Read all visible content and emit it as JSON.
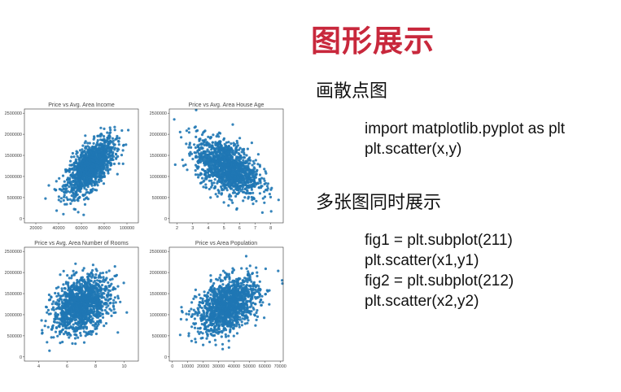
{
  "slide": {
    "title": "图形展示",
    "section1_heading": "画散点图",
    "section1_code": [
      "import matplotlib.pyplot as plt",
      "plt.scatter(x,y)"
    ],
    "section2_heading": "多张图同时展示",
    "section2_code": [
      "fig1 = plt.subplot(211)",
      "plt.scatter(x1,y1)",
      "fig2 = plt.subplot(212)",
      "plt.scatter(x2,y2)"
    ],
    "title_color": "#c8283c"
  },
  "chart_data": [
    {
      "type": "scatter",
      "title": "Price vs Avg. Area Income",
      "color": "#1f77b4",
      "xlim": [
        10000,
        110000
      ],
      "ylim": [
        -100000,
        2600000
      ],
      "xticks": [
        "20000",
        "40000",
        "60000",
        "80000",
        "100000"
      ],
      "xtick_values": [
        20000,
        40000,
        60000,
        80000,
        100000
      ],
      "yticks": [
        "0",
        "500000",
        "1000000",
        "1500000",
        "2000000",
        "2500000"
      ],
      "ytick_values": [
        0,
        500000,
        1000000,
        1500000,
        2000000,
        2500000
      ],
      "cloud": {
        "cx": 68000,
        "cy": 1230000,
        "sx": 10500,
        "sy": 330000,
        "rho": 0.64,
        "n": 1400
      }
    },
    {
      "type": "scatter",
      "title": "Price vs Avg. Area House Age",
      "color": "#1f77b4",
      "xlim": [
        1.5,
        8.8
      ],
      "ylim": [
        -100000,
        2600000
      ],
      "xticks": [
        "2",
        "3",
        "4",
        "5",
        "6",
        "7",
        "8"
      ],
      "xtick_values": [
        2,
        3,
        4,
        5,
        6,
        7,
        8
      ],
      "yticks": [
        "0",
        "500000",
        "1000000",
        "1500000",
        "2000000",
        "2500000"
      ],
      "ytick_values": [
        0,
        500000,
        1000000,
        1500000,
        2000000,
        2500000
      ],
      "cloud": {
        "cx": 5.2,
        "cy": 1230000,
        "sx": 1.0,
        "sy": 330000,
        "rho": -0.45,
        "n": 1400
      }
    },
    {
      "type": "scatter",
      "title": "Price vs Avg. Area Number of Rooms",
      "color": "#1f77b4",
      "xlim": [
        3,
        11
      ],
      "ylim": [
        -100000,
        2600000
      ],
      "xticks": [
        "4",
        "6",
        "8",
        "10"
      ],
      "xtick_values": [
        4,
        6,
        8,
        10
      ],
      "yticks": [
        "0",
        "500000",
        "1000000",
        "1500000",
        "2000000",
        "2500000"
      ],
      "ytick_values": [
        0,
        500000,
        1000000,
        1500000,
        2000000,
        2500000
      ],
      "cloud": {
        "cx": 7.0,
        "cy": 1230000,
        "sx": 1.0,
        "sy": 330000,
        "rho": 0.34,
        "n": 1400
      }
    },
    {
      "type": "scatter",
      "title": "Price vs Area Population",
      "color": "#1f77b4",
      "xlim": [
        -2000,
        72000
      ],
      "ylim": [
        -100000,
        2600000
      ],
      "xticks": [
        "0",
        "10000",
        "20000",
        "30000",
        "40000",
        "50000",
        "60000",
        "70000"
      ],
      "xtick_values": [
        0,
        10000,
        20000,
        30000,
        40000,
        50000,
        60000,
        70000
      ],
      "yticks": [
        "0",
        "500000",
        "1000000",
        "1500000",
        "2000000",
        "2500000"
      ],
      "ytick_values": [
        0,
        500000,
        1000000,
        1500000,
        2000000,
        2500000
      ],
      "cloud": {
        "cx": 36000,
        "cy": 1230000,
        "sx": 9900,
        "sy": 330000,
        "rho": 0.41,
        "n": 1400
      }
    }
  ]
}
